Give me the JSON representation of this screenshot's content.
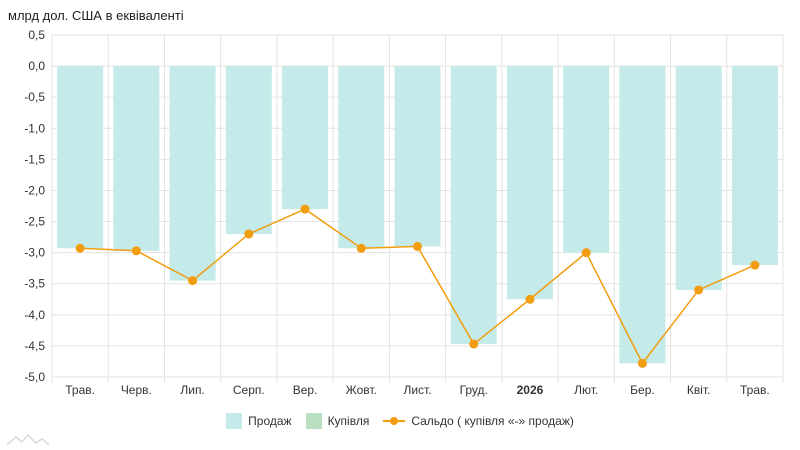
{
  "chart_data": {
    "type": "bar",
    "title": "млрд дол. США в еквіваленті",
    "categories": [
      "Трав.",
      "Черв.",
      "Лип.",
      "Серп.",
      "Вер.",
      "Жовт.",
      "Лист.",
      "Груд.",
      "2026",
      "Лют.",
      "Бер.",
      "Квіт.",
      "Трав."
    ],
    "bold_categories": [
      "2026"
    ],
    "series": [
      {
        "name": "Продаж",
        "kind": "bar",
        "color": "#c4eaea",
        "values": [
          -2.93,
          -2.97,
          -3.45,
          -2.7,
          -2.3,
          -2.93,
          -2.9,
          -4.47,
          -3.75,
          -3.0,
          -4.78,
          -3.6,
          -3.2
        ]
      },
      {
        "name": "Купівля",
        "kind": "bar",
        "color": "#b9dfc0",
        "values": [
          0,
          0,
          0,
          0,
          0,
          0,
          0,
          0,
          0,
          0,
          0,
          0,
          0
        ]
      },
      {
        "name": "Сальдо ( купівля «-» продаж)",
        "kind": "line",
        "color": "#f29d0f",
        "values": [
          -2.93,
          -2.97,
          -3.45,
          -2.7,
          -2.3,
          -2.93,
          -2.9,
          -4.47,
          -3.75,
          -3.0,
          -4.78,
          -3.6,
          -3.2
        ]
      }
    ],
    "yticks": [
      "0,5",
      "0,0",
      "-0,5",
      "-1,0",
      "-1,5",
      "-2,0",
      "-2,5",
      "-3,0",
      "-3,5",
      "-4,0",
      "-4,5",
      "-5,0"
    ],
    "ylim": [
      -5.0,
      0.5
    ],
    "grid": true,
    "legend_position": "bottom"
  }
}
